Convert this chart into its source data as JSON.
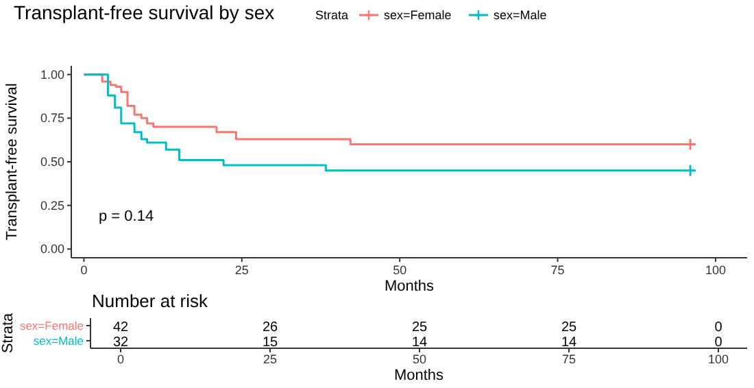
{
  "chart_data": [
    {
      "type": "step",
      "title": "Transplant-free survival by sex",
      "xlabel": "Months",
      "ylabel": "Transplant-free survival",
      "legend_title": "Strata",
      "legend": "top",
      "grid": false,
      "xlim": [
        -2,
        105
      ],
      "ylim": [
        -0.05,
        1.05
      ],
      "xticks": [
        0,
        25,
        50,
        75,
        100
      ],
      "yticks": [
        {
          "value": 0,
          "label": "0.00"
        },
        {
          "value": 0.25,
          "label": "0.25"
        },
        {
          "value": 0.5,
          "label": "0.50"
        },
        {
          "value": 0.75,
          "label": "0.75"
        },
        {
          "value": 1,
          "label": "1.00"
        }
      ],
      "annotations": [
        "p = 0.14"
      ],
      "series": [
        {
          "name": "sex=Female",
          "color": "#f8766d",
          "x": [
            0,
            2.9,
            4.2,
            5.1,
            5.9,
            6.9,
            8,
            9.1,
            10,
            11,
            21,
            24.1,
            42.2,
            96
          ],
          "values": [
            1,
            0.96,
            0.94,
            0.93,
            0.9,
            0.82,
            0.77,
            0.75,
            0.72,
            0.7,
            0.67,
            0.63,
            0.6,
            0.6
          ]
        },
        {
          "name": "sex=Male",
          "color": "#00bfc4",
          "x": [
            0,
            3.8,
            4.9,
            5.9,
            8,
            9.1,
            10,
            13,
            15.1,
            22.1,
            38.3,
            96
          ],
          "values": [
            1,
            0.88,
            0.81,
            0.72,
            0.67,
            0.63,
            0.61,
            0.57,
            0.51,
            0.48,
            0.45,
            0.45
          ]
        }
      ]
    },
    {
      "type": "heatmap",
      "title": "Number at risk",
      "xlabel": "Months",
      "ylabel": "Strata",
      "data_labels": true,
      "categories": [
        "0",
        "25",
        "50",
        "75",
        "100"
      ],
      "y_categories": [
        "sex=Female",
        "sex=Male"
      ],
      "cells": [
        [
          42,
          26,
          25,
          25,
          0
        ],
        [
          32,
          15,
          14,
          14,
          0
        ]
      ]
    }
  ]
}
